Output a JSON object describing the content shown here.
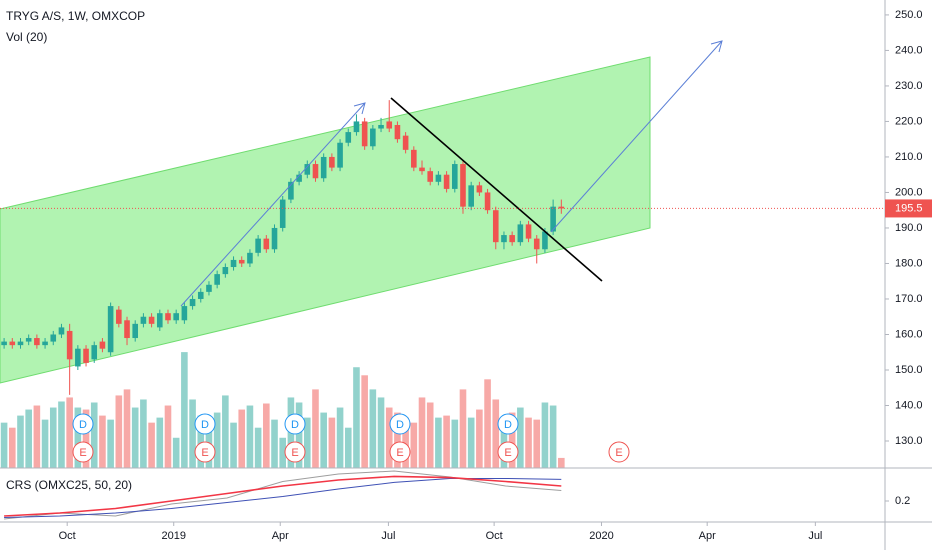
{
  "chart_data": {
    "type": "candlestick",
    "title": "TRYG A/S, 1W, OMXCOP",
    "volume_label": "Vol (20)",
    "open": [
      157,
      158,
      157,
      158,
      159,
      157,
      158,
      160,
      161,
      151,
      156,
      153,
      158,
      155,
      167,
      164,
      159,
      163,
      165,
      162,
      166,
      164,
      164,
      168,
      170,
      172,
      174,
      177,
      179,
      181,
      180,
      183,
      187,
      184,
      190,
      198,
      203,
      205,
      208,
      204,
      210,
      207,
      214,
      217,
      220,
      213,
      218,
      220,
      219,
      216,
      212,
      207,
      206,
      203,
      205,
      201,
      208,
      196,
      202,
      200,
      195,
      186,
      188,
      186,
      191,
      187,
      184,
      189,
      196
    ],
    "high": [
      159,
      159,
      159,
      160,
      160,
      159,
      161,
      163,
      163,
      157,
      157,
      158,
      159,
      169,
      168,
      165,
      164,
      166,
      166,
      167,
      167,
      167,
      169,
      171,
      173,
      175,
      178,
      180,
      182,
      182,
      184,
      188,
      188,
      191,
      199,
      204,
      206,
      209,
      209,
      211,
      211,
      215,
      218,
      222,
      221,
      219,
      221,
      226,
      220,
      217,
      213,
      209,
      207,
      206,
      206,
      209,
      209,
      203,
      203,
      201,
      196,
      189,
      189,
      192,
      192,
      188,
      190,
      198,
      198
    ],
    "low": [
      156,
      156,
      156,
      157,
      156,
      156,
      157,
      159,
      143,
      150,
      151,
      152,
      155,
      154,
      162,
      157,
      158,
      162,
      162,
      161,
      163,
      163,
      163,
      167,
      169,
      171,
      173,
      176,
      178,
      179,
      179,
      182,
      183,
      183,
      189,
      197,
      202,
      204,
      203,
      203,
      206,
      206,
      213,
      216,
      212,
      212,
      217,
      217,
      214,
      211,
      206,
      205,
      202,
      202,
      200,
      200,
      194,
      195,
      199,
      194,
      184,
      184,
      185,
      185,
      186,
      180,
      183,
      188,
      194
    ],
    "close": [
      158,
      157,
      158,
      159,
      157,
      158,
      160,
      162,
      153,
      156,
      152,
      157,
      156,
      168,
      163,
      159,
      163,
      165,
      163,
      166,
      164,
      166,
      168,
      170,
      172,
      174,
      177,
      179,
      181,
      180,
      183,
      187,
      184,
      190,
      198,
      203,
      205,
      208,
      204,
      210,
      207,
      214,
      217,
      220,
      213,
      218,
      219,
      218,
      215,
      212,
      207,
      206,
      203,
      205,
      201,
      208,
      196,
      202,
      200,
      195,
      186,
      188,
      186,
      191,
      187,
      184,
      189,
      196,
      195.5
    ],
    "volume": [
      45,
      40,
      52,
      58,
      62,
      48,
      60,
      66,
      70,
      60,
      58,
      65,
      52,
      48,
      72,
      78,
      60,
      68,
      45,
      50,
      62,
      30,
      115,
      68,
      52,
      50,
      55,
      72,
      45,
      58,
      62,
      40,
      64,
      48,
      30,
      70,
      65,
      50,
      78,
      55,
      50,
      60,
      40,
      100,
      92,
      78,
      70,
      60,
      55,
      50,
      45,
      70,
      65,
      50,
      52,
      48,
      78,
      50,
      58,
      88,
      68,
      42,
      55,
      60,
      50,
      48,
      65,
      62,
      10
    ],
    "up_color": "#26a69a",
    "down_color": "#ef5350",
    "ylim": [
      122.4,
      254.2
    ],
    "yticks": [
      {
        "value": 250,
        "label": "250.0"
      },
      {
        "value": 240,
        "label": "240.0"
      },
      {
        "value": 230,
        "label": "230.0"
      },
      {
        "value": 220,
        "label": "220.0"
      },
      {
        "value": 210,
        "label": "210.0"
      },
      {
        "value": 200,
        "label": "200.0"
      },
      {
        "value": 190,
        "label": "190.0"
      },
      {
        "value": 180,
        "label": "180.0"
      },
      {
        "value": 170,
        "label": "170.0"
      },
      {
        "value": 160,
        "label": "160.0"
      },
      {
        "value": 150,
        "label": "150.0"
      },
      {
        "value": 140,
        "label": "140.0"
      },
      {
        "value": 130,
        "label": "130.0"
      }
    ],
    "xlim": [
      -0.5,
      107.5
    ],
    "xticks": [
      {
        "value": 7.7,
        "label": "Oct"
      },
      {
        "value": 20.7,
        "label": "2019"
      },
      {
        "value": 33.7,
        "label": "Apr"
      },
      {
        "value": 46.9,
        "label": "Jul"
      },
      {
        "value": 59.8,
        "label": "Oct"
      },
      {
        "value": 72.9,
        "label": "2020"
      },
      {
        "value": 85.8,
        "label": "Apr"
      },
      {
        "value": 99,
        "label": "Jul"
      }
    ],
    "vlim": [
      0,
      130
    ],
    "events": [
      "D",
      "E",
      "D",
      "E",
      "D",
      "E",
      "D",
      "E",
      "D",
      "E",
      "E"
    ],
    "indicator": {
      "title": "CRS (OMXC25, 50, 20)",
      "ylim": [
        0.13,
        0.31
      ],
      "yticks": [
        0.2
      ],
      "series": [
        {
          "color": "#9e9e9e",
          "values": [
            0.14,
            0.16,
            0.15,
            0.19,
            0.21,
            0.265,
            0.29,
            0.3,
            0.28,
            0.25,
            0.235
          ]
        },
        {
          "color": "#3f51b5",
          "values": [
            0.145,
            0.15,
            0.16,
            0.175,
            0.195,
            0.215,
            0.24,
            0.262,
            0.275,
            0.275,
            0.272
          ]
        },
        {
          "color": "#f23645",
          "values": [
            0.15,
            0.16,
            0.175,
            0.2,
            0.225,
            0.25,
            0.27,
            0.282,
            0.278,
            0.265,
            0.25
          ]
        }
      ]
    }
  }
}
